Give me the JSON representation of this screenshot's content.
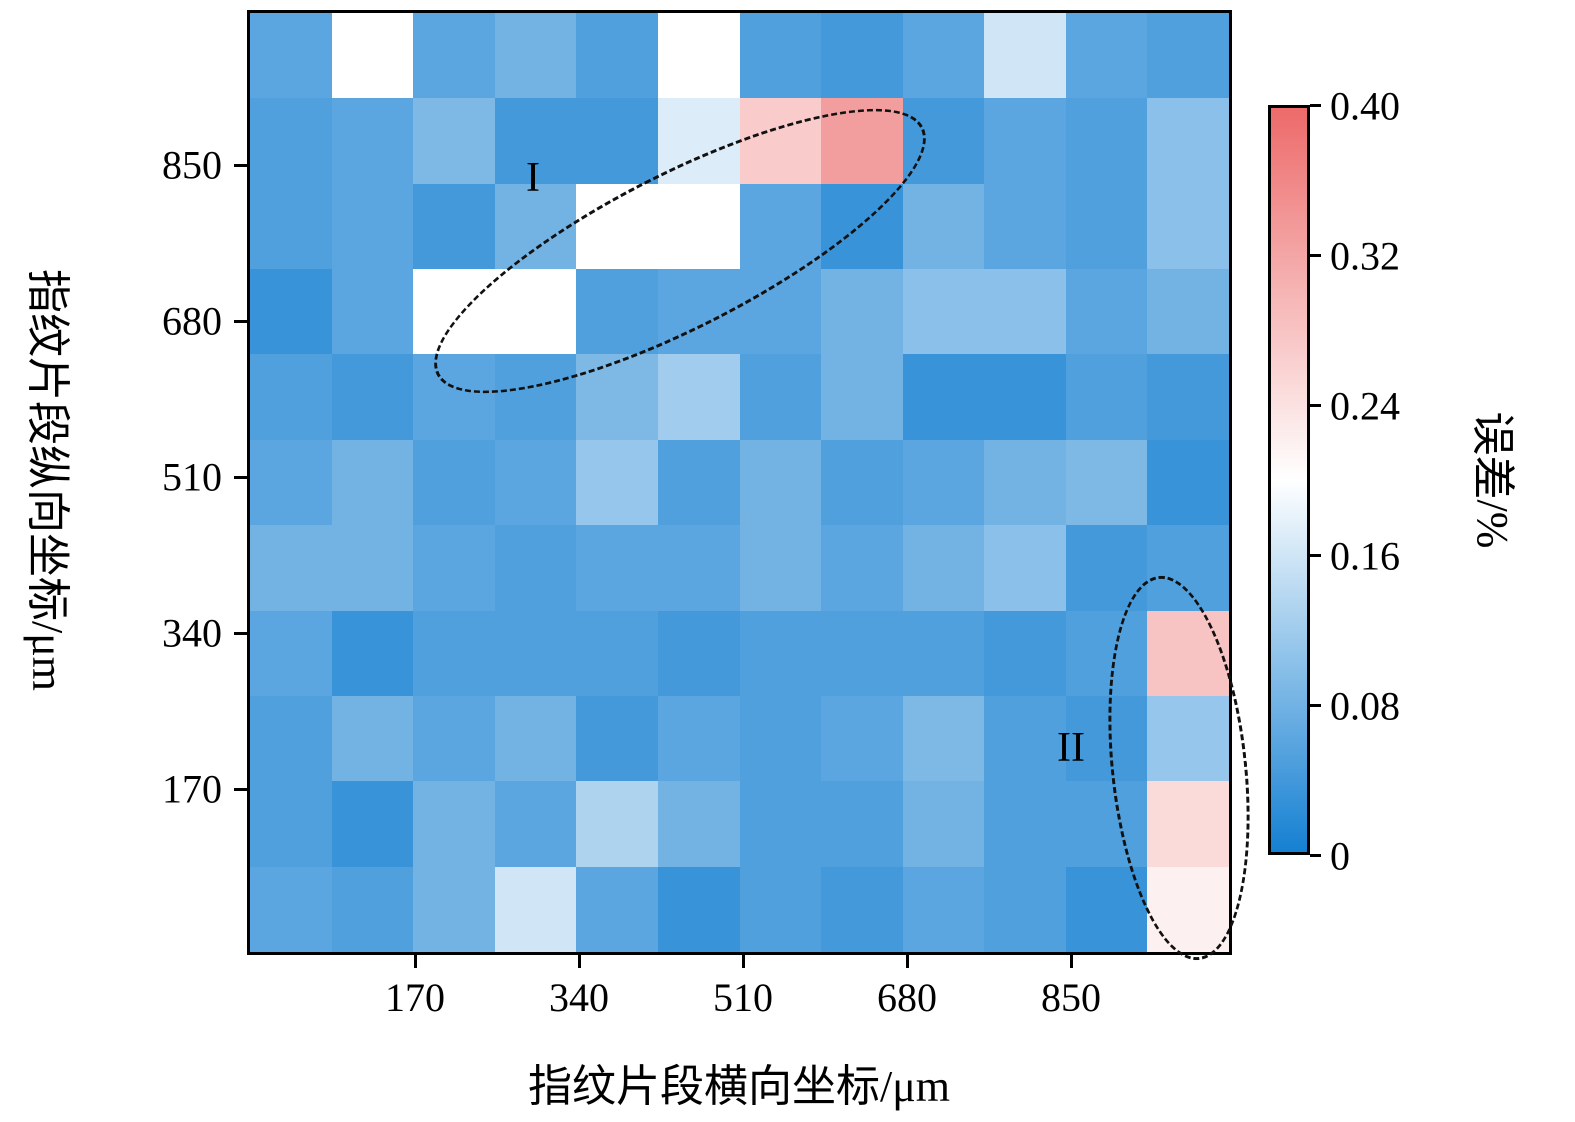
{
  "chart_data": {
    "type": "heatmap",
    "title": "",
    "xlabel": "指纹片段横向坐标/μm",
    "ylabel": "指纹片段纵向坐标/μm",
    "colorbar_label": "误差/%",
    "x_ticks": [
      "170",
      "340",
      "510",
      "680",
      "850"
    ],
    "y_ticks": [
      "850",
      "680",
      "510",
      "340",
      "170"
    ],
    "colorbar_ticks": [
      "0.40",
      "0.32",
      "0.24",
      "0.16",
      "0.08",
      "0"
    ],
    "vmin": 0,
    "vmax": 0.4,
    "white_point": 0.2,
    "colors": {
      "low": "#1580d2",
      "mid": "#ffffff",
      "high": "#ed6a6a"
    },
    "grid": {
      "rows": 11,
      "cols": 12,
      "cell_size_um": 85
    },
    "values": [
      [
        0.06,
        0.2,
        0.06,
        0.08,
        0.05,
        0.2,
        0.05,
        0.04,
        0.06,
        0.16,
        0.06,
        0.05
      ],
      [
        0.05,
        0.06,
        0.09,
        0.04,
        0.04,
        0.17,
        0.27,
        0.33,
        0.04,
        0.06,
        0.05,
        0.1
      ],
      [
        0.05,
        0.06,
        0.04,
        0.08,
        0.2,
        0.2,
        0.06,
        0.03,
        0.08,
        0.06,
        0.05,
        0.1
      ],
      [
        0.03,
        0.06,
        0.2,
        0.2,
        0.05,
        0.06,
        0.06,
        0.08,
        0.1,
        0.1,
        0.06,
        0.08
      ],
      [
        0.05,
        0.04,
        0.06,
        0.05,
        0.09,
        0.12,
        0.05,
        0.08,
        0.03,
        0.03,
        0.05,
        0.04
      ],
      [
        0.06,
        0.08,
        0.05,
        0.06,
        0.11,
        0.05,
        0.08,
        0.05,
        0.06,
        0.08,
        0.09,
        0.03
      ],
      [
        0.08,
        0.08,
        0.06,
        0.05,
        0.06,
        0.06,
        0.08,
        0.06,
        0.08,
        0.1,
        0.04,
        0.05
      ],
      [
        0.06,
        0.03,
        0.05,
        0.05,
        0.05,
        0.04,
        0.05,
        0.05,
        0.05,
        0.04,
        0.05,
        0.28
      ],
      [
        0.05,
        0.08,
        0.06,
        0.08,
        0.04,
        0.06,
        0.05,
        0.06,
        0.09,
        0.05,
        0.04,
        0.11
      ],
      [
        0.05,
        0.03,
        0.08,
        0.06,
        0.13,
        0.08,
        0.05,
        0.05,
        0.08,
        0.05,
        0.05,
        0.25
      ],
      [
        0.06,
        0.05,
        0.08,
        0.16,
        0.06,
        0.03,
        0.05,
        0.04,
        0.06,
        0.05,
        0.03,
        0.22
      ]
    ],
    "annotations": [
      {
        "label": "I",
        "shape": "dashed-ellipse",
        "region": "upper-middle diagonal band"
      },
      {
        "label": "II",
        "shape": "dashed-ellipse",
        "region": "lower-right column"
      }
    ]
  }
}
